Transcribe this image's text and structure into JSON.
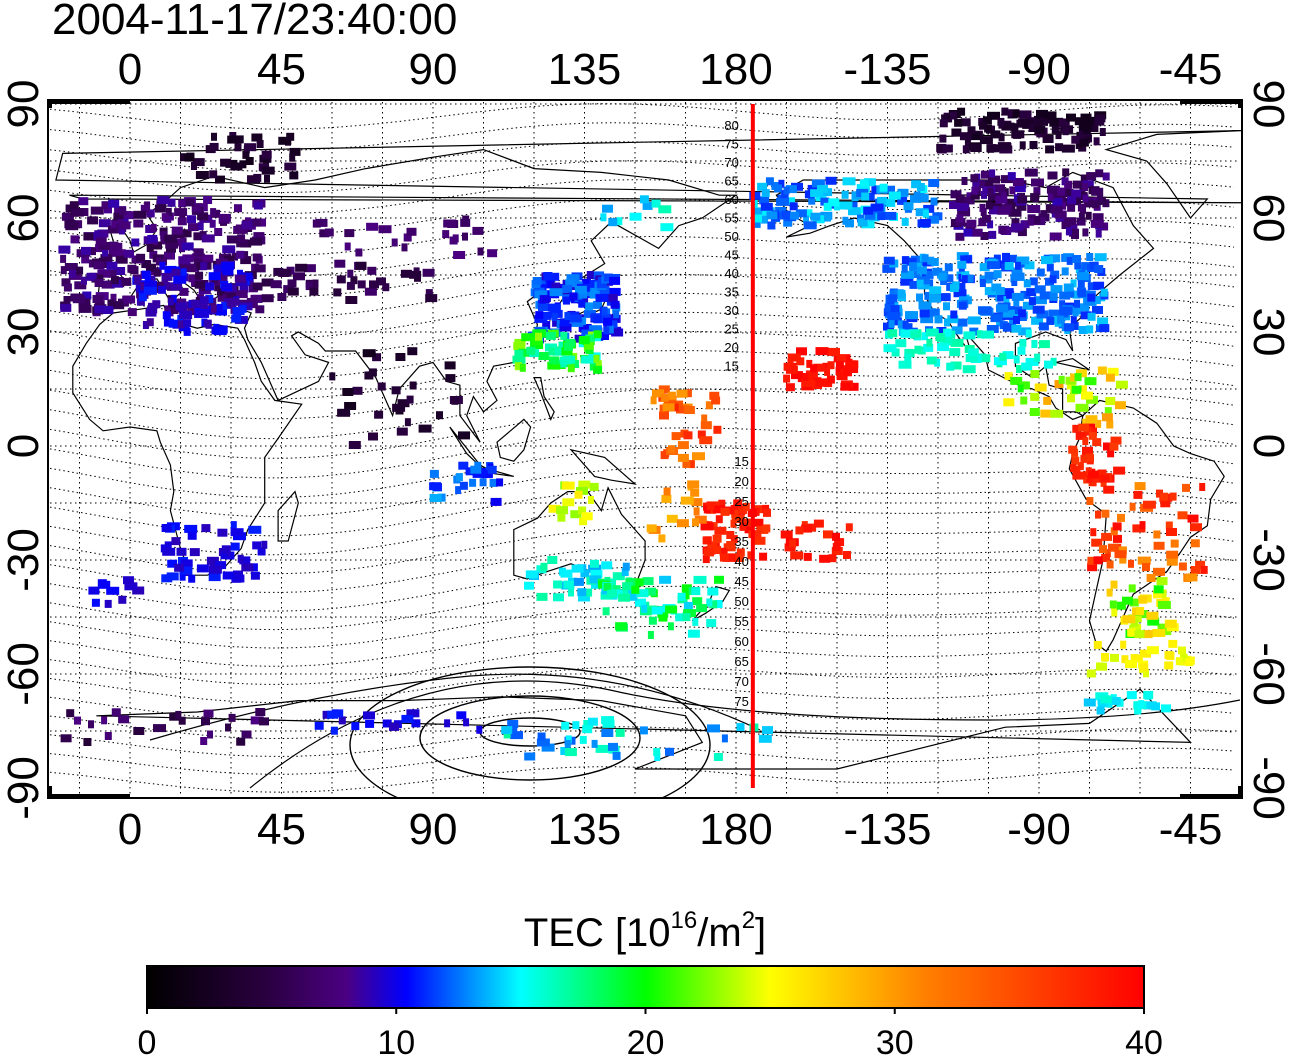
{
  "timestamp": "2004-11-17/23:40:00",
  "map": {
    "top_lon_labels": [
      "0",
      "45",
      "90",
      "135",
      "180",
      "-135",
      "-90",
      "-45"
    ],
    "bottom_lon_labels": [
      "0",
      "45",
      "90",
      "135",
      "180",
      "-135",
      "-90",
      "-45"
    ],
    "lat_labels": [
      "90",
      "60",
      "30",
      "0",
      "-30",
      "-60",
      "-90"
    ],
    "terminator_lon": -175,
    "terminator_color": "#ff0000",
    "contour_labels_north": [
      "80",
      "75",
      "70",
      "65",
      "60",
      "55",
      "50",
      "45",
      "40",
      "35",
      "30",
      "25",
      "20",
      "15"
    ],
    "contour_labels_south": [
      "15",
      "20",
      "25",
      "30",
      "35",
      "40",
      "45",
      "50",
      "55",
      "60",
      "65",
      "70",
      "75"
    ]
  },
  "colorbar": {
    "title_prefix": "TEC  [10",
    "title_sup1": "16",
    "title_mid": "/m",
    "title_sup2": "2",
    "title_suffix": "]",
    "ticks": [
      "0",
      "10",
      "20",
      "30",
      "40"
    ],
    "min": 0,
    "max": 40,
    "colors": [
      "#000000",
      "#2a0040",
      "#4b0082",
      "#0000ff",
      "#00ffff",
      "#00ff00",
      "#ffff00",
      "#ff8000",
      "#ff0000"
    ]
  }
}
